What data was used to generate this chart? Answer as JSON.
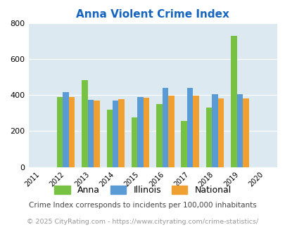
{
  "title": "Anna Violent Crime Index",
  "all_years": [
    2011,
    2012,
    2013,
    2014,
    2015,
    2016,
    2017,
    2018,
    2019,
    2020
  ],
  "data_years": [
    2012,
    2013,
    2014,
    2015,
    2016,
    2017,
    2018,
    2019
  ],
  "anna": [
    390,
    485,
    320,
    278,
    350,
    258,
    332,
    730
  ],
  "illinois": [
    415,
    372,
    370,
    390,
    440,
    440,
    405,
    405
  ],
  "national": [
    390,
    368,
    378,
    385,
    398,
    398,
    380,
    382
  ],
  "anna_color": "#77c143",
  "illinois_color": "#5b9bd5",
  "national_color": "#f0a030",
  "bg_color": "#dce9f0",
  "title_color": "#1464c0",
  "ylim": [
    0,
    800
  ],
  "yticks": [
    0,
    200,
    400,
    600,
    800
  ],
  "footnote1": "Crime Index corresponds to incidents per 100,000 inhabitants",
  "footnote2": "© 2025 CityRating.com - https://www.cityrating.com/crime-statistics/",
  "footnote1_color": "#444444",
  "footnote2_color": "#999999",
  "bar_width": 0.24
}
